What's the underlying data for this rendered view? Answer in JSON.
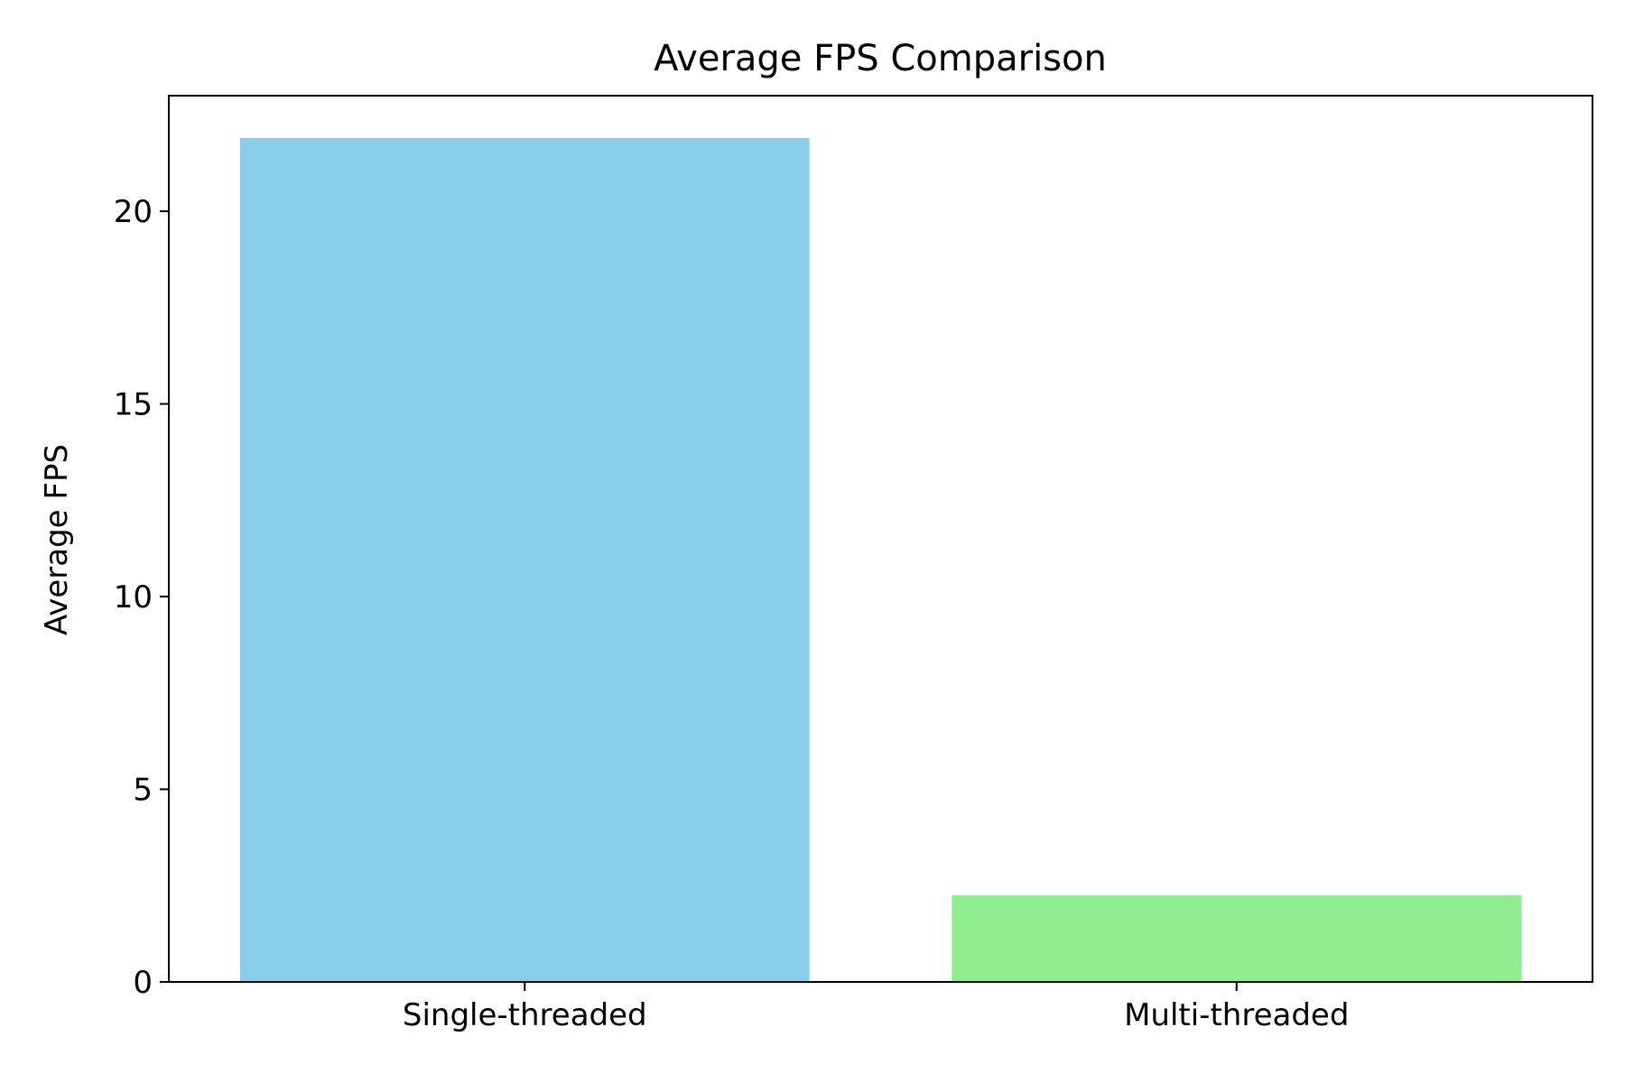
{
  "chart_data": {
    "type": "bar",
    "title": "Average FPS Comparison",
    "xlabel": "",
    "ylabel": "Average FPS",
    "categories": [
      "Single-threaded",
      "Multi-threaded"
    ],
    "values": [
      21.9,
      2.25
    ],
    "bar_colors": [
      "#87ceeb",
      "#90ee90"
    ],
    "ylim": [
      0,
      23.0
    ],
    "yticks": [
      0,
      5,
      10,
      15,
      20
    ],
    "ytick_labels": [
      "0",
      "5",
      "10",
      "15",
      "20"
    ],
    "grid": false,
    "legend": "none"
  }
}
